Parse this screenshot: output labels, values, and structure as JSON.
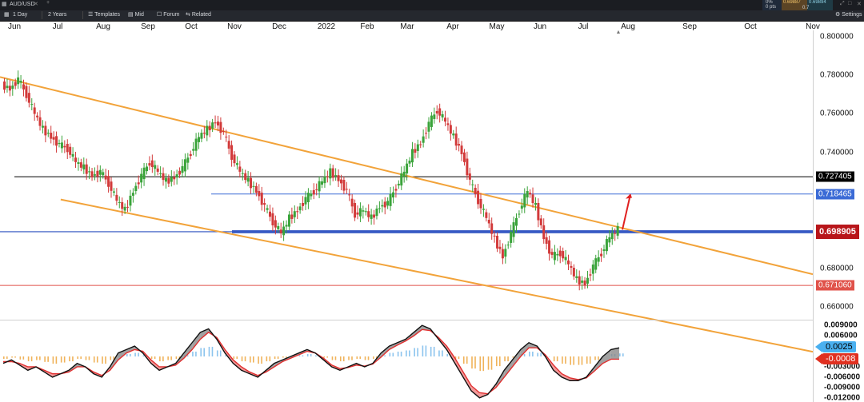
{
  "window": {
    "title": "AUD/USD"
  },
  "toolbar": {
    "interval": "1 Day",
    "range": "2 Years",
    "templates": "Templates",
    "mid": "Mid",
    "forum": "Forum",
    "related": "Related",
    "settings": "Settings"
  },
  "quote": {
    "change_pct": "0%",
    "change_pts": "0 pts",
    "bid": "0.69887",
    "ask": "0.69894",
    "spread": "0.7"
  },
  "chart_data": {
    "type": "candlestick",
    "symbol": "AUD/USD",
    "x_labels": [
      "Jun",
      "Jul",
      "Aug",
      "Sep",
      "Oct",
      "Nov",
      "Dec",
      "2022",
      "Feb",
      "Mar",
      "Apr",
      "May",
      "Jun",
      "Jul",
      "Aug",
      "Sep",
      "Oct",
      "Nov"
    ],
    "y_ticks": [
      "0.800000",
      "0.780000",
      "0.760000",
      "0.740000",
      "0.680000",
      "0.660000"
    ],
    "ylim": [
      0.6533,
      0.8033
    ],
    "price_series": [
      0.775,
      0.773,
      0.778,
      0.77,
      0.76,
      0.752,
      0.748,
      0.744,
      0.742,
      0.735,
      0.732,
      0.728,
      0.73,
      0.724,
      0.715,
      0.71,
      0.72,
      0.728,
      0.735,
      0.73,
      0.725,
      0.727,
      0.732,
      0.74,
      0.748,
      0.752,
      0.756,
      0.75,
      0.738,
      0.73,
      0.725,
      0.72,
      0.712,
      0.704,
      0.698,
      0.706,
      0.71,
      0.716,
      0.72,
      0.725,
      0.73,
      0.726,
      0.72,
      0.708,
      0.71,
      0.706,
      0.712,
      0.714,
      0.722,
      0.73,
      0.74,
      0.745,
      0.755,
      0.762,
      0.756,
      0.748,
      0.74,
      0.725,
      0.715,
      0.706,
      0.695,
      0.686,
      0.698,
      0.71,
      0.72,
      0.712,
      0.696,
      0.686,
      0.688,
      0.682,
      0.674,
      0.672,
      0.681,
      0.688,
      0.696,
      0.7
    ],
    "horizontal_levels": [
      {
        "label": "0.727405",
        "value": 0.727405,
        "color": "#000000"
      },
      {
        "label": "0.718465",
        "value": 0.718465,
        "color": "#3b6bd6"
      },
      {
        "label": "0.698905",
        "value": 0.698905,
        "color": "#2a4fbf"
      },
      {
        "label": "0.671060",
        "value": 0.67106,
        "color": "#e0524a"
      }
    ],
    "trendlines": [
      {
        "name": "upper-channel",
        "color": "#f2a33a",
        "from": {
          "x_index": 0,
          "y": 0.7787
        },
        "to": {
          "x_index": 75,
          "y": 0.7012
        }
      },
      {
        "name": "lower-channel",
        "color": "#f2a33a",
        "from": {
          "x_index": 7,
          "y": 0.7156
        },
        "to": {
          "x_index": 75,
          "y": 0.657
        }
      }
    ],
    "current_price": "0.698905",
    "indicator": {
      "type": "macd",
      "y_ticks": [
        "0.009000",
        "0.006000",
        "-0.003000",
        "-0.006000",
        "-0.009000",
        "-0.012000"
      ],
      "ylim": [
        -0.0125,
        0.0095
      ],
      "value_label": "0.0025",
      "signal_label": "-0.0008",
      "macd_series": [
        -0.002,
        -0.001,
        -0.0025,
        -0.004,
        -0.003,
        -0.0045,
        -0.006,
        -0.005,
        -0.004,
        -0.002,
        -0.003,
        -0.005,
        -0.006,
        -0.003,
        0.001,
        0.002,
        0.003,
        0.001,
        -0.002,
        -0.004,
        -0.003,
        -0.002,
        0.001,
        0.004,
        0.007,
        0.008,
        0.005,
        0.001,
        -0.002,
        -0.004,
        -0.005,
        -0.006,
        -0.004,
        -0.002,
        -0.001,
        0.0,
        0.001,
        0.002,
        0.001,
        -0.001,
        -0.003,
        -0.004,
        -0.003,
        -0.002,
        -0.003,
        -0.002,
        0.001,
        0.003,
        0.004,
        0.005,
        0.007,
        0.009,
        0.008,
        0.005,
        0.002,
        -0.002,
        -0.006,
        -0.01,
        -0.012,
        -0.011,
        -0.008,
        -0.004,
        -0.001,
        0.002,
        0.004,
        0.003,
        0.0,
        -0.004,
        -0.006,
        -0.007,
        -0.007,
        -0.006,
        -0.003,
        0.0,
        0.002,
        0.0025
      ],
      "signal_series": [
        -0.0015,
        -0.0015,
        -0.002,
        -0.003,
        -0.003,
        -0.004,
        -0.005,
        -0.005,
        -0.0045,
        -0.003,
        -0.003,
        -0.0045,
        -0.0055,
        -0.004,
        -0.001,
        0.001,
        0.002,
        0.0015,
        -0.001,
        -0.003,
        -0.003,
        -0.0025,
        -0.0005,
        0.002,
        0.005,
        0.007,
        0.0055,
        0.002,
        -0.001,
        -0.003,
        -0.0045,
        -0.0055,
        -0.0045,
        -0.003,
        -0.0015,
        -0.0005,
        0.0005,
        0.0015,
        0.001,
        -0.0005,
        -0.0025,
        -0.0035,
        -0.0032,
        -0.0025,
        -0.0028,
        -0.0022,
        -0.0002,
        0.002,
        0.0033,
        0.0045,
        0.006,
        0.0078,
        0.0075,
        0.0055,
        0.003,
        -0.0005,
        -0.0045,
        -0.0085,
        -0.0105,
        -0.0108,
        -0.009,
        -0.006,
        -0.003,
        0.0,
        0.0025,
        0.0025,
        0.0005,
        -0.0025,
        -0.005,
        -0.0062,
        -0.0067,
        -0.0062,
        -0.0042,
        -0.002,
        -0.0008,
        -0.0008
      ]
    }
  }
}
